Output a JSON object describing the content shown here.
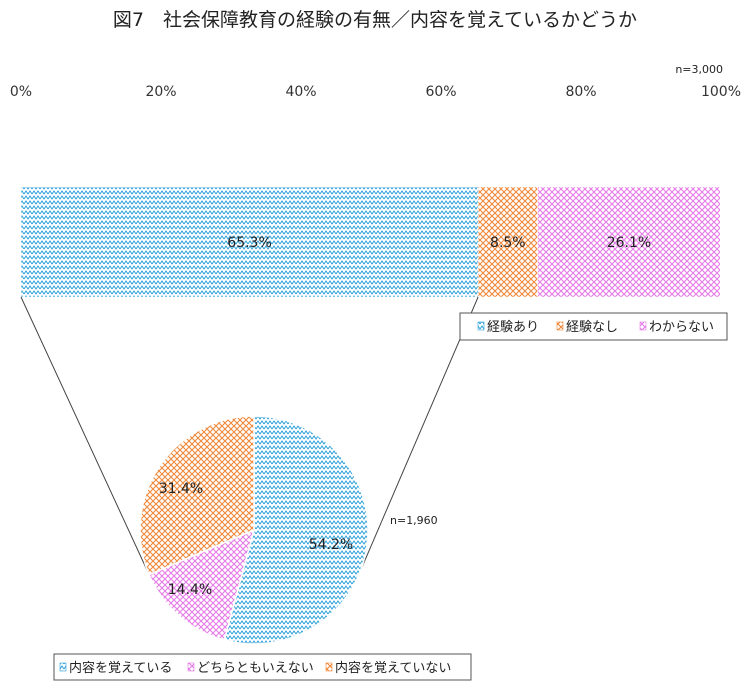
{
  "colors": {
    "experienced": "#2b9fd9",
    "not_experienced": "#f0883a",
    "unknown": "#e67ae8"
  },
  "chart_data": [
    {
      "type": "bar",
      "orientation": "horizontal-stacked",
      "title": "図7　社会保障教育の経験の有無／内容を覚えているかどうか",
      "n_label": "n=3,000",
      "x_ticks": [
        "0%",
        "20%",
        "40%",
        "60%",
        "80%",
        "100%"
      ],
      "xlim": [
        0,
        100
      ],
      "series": [
        {
          "name": "経験あり",
          "value": 65.3,
          "label": "65.3%"
        },
        {
          "name": "経験なし",
          "value": 8.5,
          "label": "8.5%"
        },
        {
          "name": "わからない",
          "value": 26.1,
          "label": "26.1%"
        }
      ],
      "legend_position": "bottom-right"
    },
    {
      "type": "pie",
      "n_label": "n=1,960",
      "slices": [
        {
          "name": "内容を覚えている",
          "value": 54.2,
          "label": "54.2%"
        },
        {
          "name": "どちらともいえない",
          "value": 14.4,
          "label": "14.4%"
        },
        {
          "name": "内容を覚えていない",
          "value": 31.4,
          "label": "31.4%"
        }
      ],
      "legend_position": "bottom"
    }
  ]
}
